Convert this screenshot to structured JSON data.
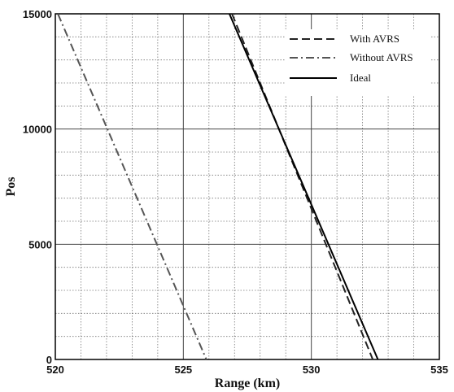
{
  "chart_data": {
    "type": "line",
    "title": "",
    "xlabel": "Range (km)",
    "ylabel": "Pos",
    "xlim": [
      520,
      535
    ],
    "ylim": [
      0,
      15000
    ],
    "x_ticks": [
      520,
      525,
      530,
      535
    ],
    "y_ticks": [
      0,
      5000,
      10000,
      15000
    ],
    "x_tick_labels": [
      "520",
      "525",
      "530",
      "535"
    ],
    "y_tick_labels": [
      "0",
      "5000",
      "10000",
      "15000"
    ],
    "grid": true,
    "minor_grid": true,
    "legend_position": "top-right",
    "series": [
      {
        "name": "With AVRS",
        "style": "dashed",
        "color": "#222222",
        "points": [
          [
            526.9,
            15000
          ],
          [
            532.4,
            0
          ]
        ]
      },
      {
        "name": "Without AVRS",
        "style": "dashdot",
        "color": "#555555",
        "points": [
          [
            520.1,
            15000
          ],
          [
            525.9,
            0
          ]
        ]
      },
      {
        "name": "Ideal",
        "style": "solid",
        "color": "#000000",
        "points": [
          [
            526.8,
            15000
          ],
          [
            532.6,
            0
          ]
        ]
      }
    ]
  }
}
